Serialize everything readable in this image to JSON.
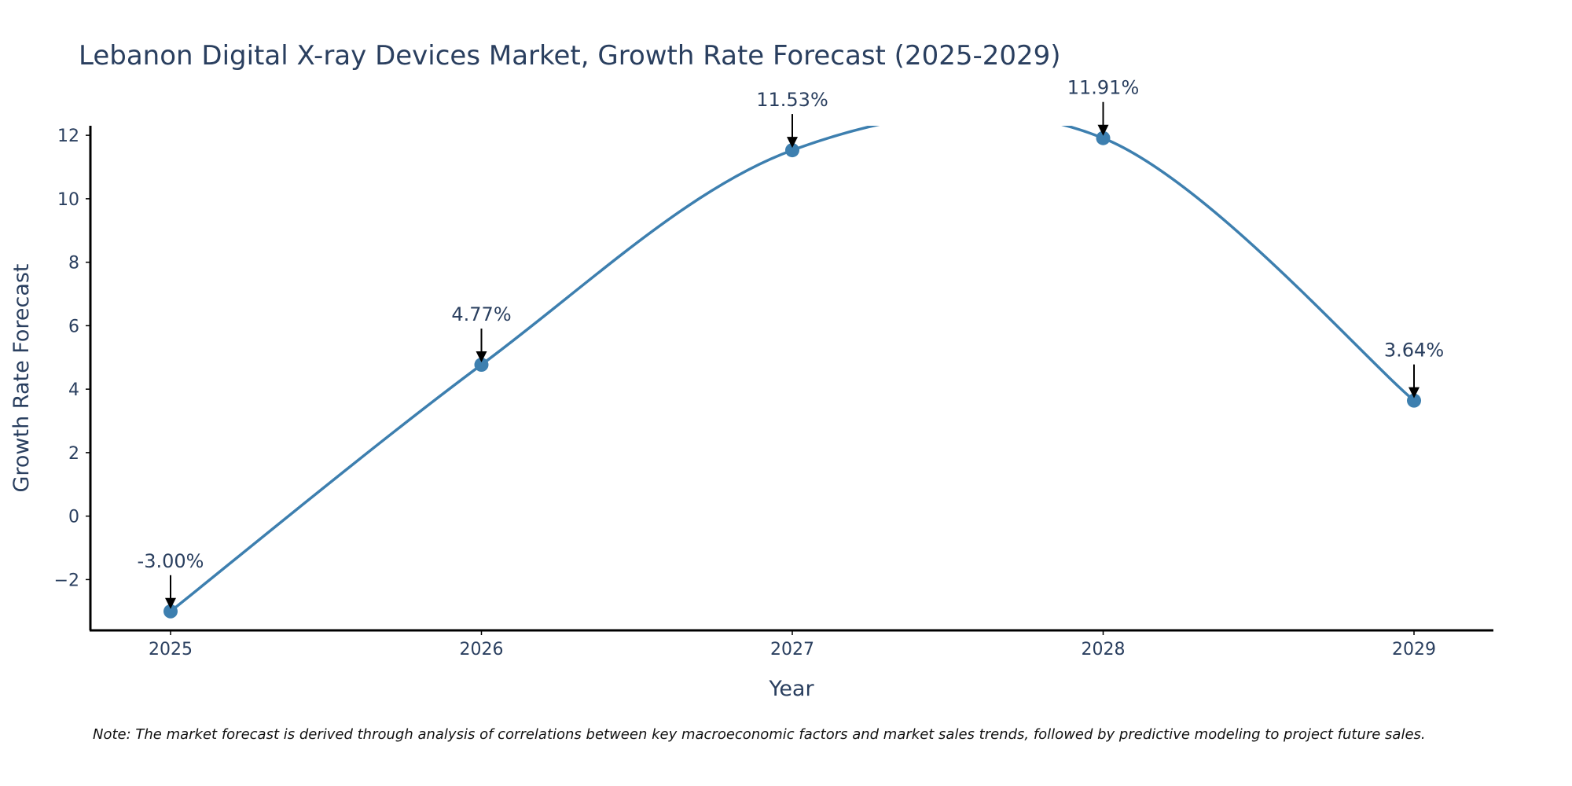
{
  "chart_data": {
    "type": "line",
    "title": "Lebanon Digital X-ray Devices Market, Growth Rate Forecast (2025-2029)",
    "xlabel": "Year",
    "ylabel": "Growth Rate Forecast",
    "categories": [
      "2025",
      "2026",
      "2027",
      "2028",
      "2029"
    ],
    "series": [
      {
        "name": "Growth Rate Forecast",
        "values": [
          -3.0,
          4.77,
          11.53,
          11.91,
          3.64
        ]
      }
    ],
    "data_labels": [
      "-3.00%",
      "4.77%",
      "11.53%",
      "11.91%",
      "3.64%"
    ],
    "ylim": [
      -3.6,
      12.3
    ],
    "yticks": [
      -2,
      0,
      2,
      4,
      6,
      8,
      10,
      12
    ],
    "ytick_labels": [
      "−2",
      "0",
      "2",
      "4",
      "6",
      "8",
      "10",
      "12"
    ],
    "grid": false,
    "line_shape": "spline",
    "line_color": "#3d7faf",
    "note": "Note: The market forecast is derived through analysis of correlations between key macroeconomic factors and market sales trends, followed by predictive modeling to project future sales."
  }
}
